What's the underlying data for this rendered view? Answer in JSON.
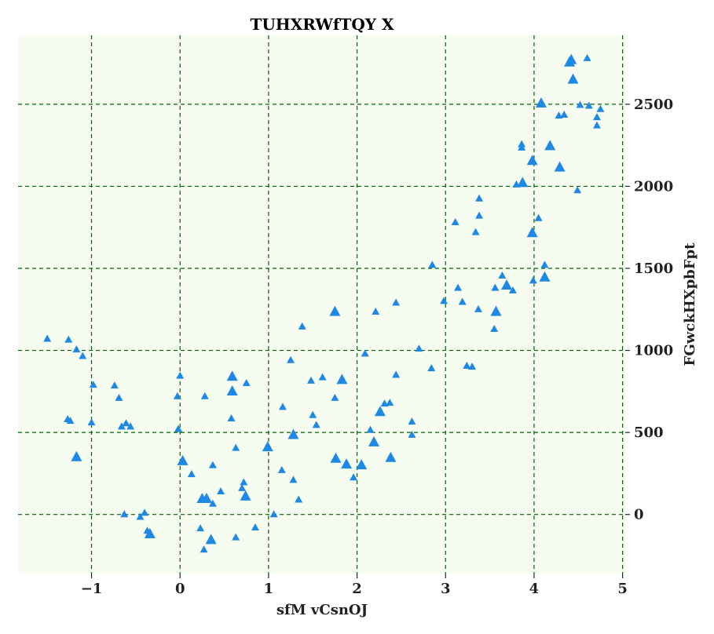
{
  "chart_data": {
    "type": "scatter",
    "title": "TUHXRWfTQY X",
    "xlabel": "sfM vCsnOJ",
    "ylabel": "FGwckHXpbFpt",
    "xlim": [
      -1.83,
      5.03
    ],
    "ylim": [
      -360,
      2920
    ],
    "xticks": [
      -1,
      0,
      1,
      2,
      3,
      4,
      5
    ],
    "xtick_labels": [
      "−1",
      "0",
      "1",
      "2",
      "3",
      "4",
      "5"
    ],
    "yticks": [
      0,
      500,
      1000,
      1500,
      2000,
      2500
    ],
    "ytick_labels": [
      "0",
      "500",
      "1000",
      "1500",
      "2000",
      "2500"
    ],
    "y_axis_side": "right",
    "grid": true,
    "legend": false,
    "colors": {
      "marker": "#1e88e5",
      "grid": "#006400",
      "plot_bg": "#f7fcf1"
    },
    "marker": "triangle-up",
    "points": [
      {
        "x": -1.5,
        "y": 1070,
        "s": 1
      },
      {
        "x": -1.26,
        "y": 1065,
        "s": 1
      },
      {
        "x": -1.17,
        "y": 1005,
        "s": 1
      },
      {
        "x": -1.1,
        "y": 965,
        "s": 1
      },
      {
        "x": -1.27,
        "y": 580,
        "s": 1
      },
      {
        "x": -1.24,
        "y": 570,
        "s": 1
      },
      {
        "x": -1.17,
        "y": 350,
        "s": 2
      },
      {
        "x": -0.98,
        "y": 790,
        "s": 1
      },
      {
        "x": -1.0,
        "y": 560,
        "s": 1
      },
      {
        "x": -0.74,
        "y": 785,
        "s": 1
      },
      {
        "x": -0.69,
        "y": 710,
        "s": 1
      },
      {
        "x": -0.66,
        "y": 535,
        "s": 1
      },
      {
        "x": -0.61,
        "y": 555,
        "s": 1
      },
      {
        "x": -0.56,
        "y": 535,
        "s": 1
      },
      {
        "x": -0.63,
        "y": 0,
        "s": 1
      },
      {
        "x": -0.45,
        "y": -15,
        "s": 1
      },
      {
        "x": -0.4,
        "y": 10,
        "s": 1
      },
      {
        "x": -0.37,
        "y": -100,
        "s": 1
      },
      {
        "x": -0.34,
        "y": -120,
        "s": 2
      },
      {
        "x": -0.03,
        "y": 720,
        "s": 1
      },
      {
        "x": 0.0,
        "y": 845,
        "s": 1
      },
      {
        "x": -0.02,
        "y": 520,
        "s": 1
      },
      {
        "x": 0.03,
        "y": 325,
        "s": 2
      },
      {
        "x": 0.13,
        "y": 245,
        "s": 1
      },
      {
        "x": 0.28,
        "y": 720,
        "s": 1
      },
      {
        "x": 0.25,
        "y": 95,
        "s": 2
      },
      {
        "x": 0.3,
        "y": 95,
        "s": 2
      },
      {
        "x": 0.23,
        "y": -85,
        "s": 1
      },
      {
        "x": 0.27,
        "y": -215,
        "s": 1
      },
      {
        "x": 0.35,
        "y": -155,
        "s": 2
      },
      {
        "x": 0.37,
        "y": 300,
        "s": 1
      },
      {
        "x": 0.37,
        "y": 65,
        "s": 1
      },
      {
        "x": 0.46,
        "y": 140,
        "s": 1
      },
      {
        "x": 0.58,
        "y": 585,
        "s": 1
      },
      {
        "x": 0.59,
        "y": 840,
        "s": 2
      },
      {
        "x": 0.59,
        "y": 750,
        "s": 2
      },
      {
        "x": 0.63,
        "y": 405,
        "s": 1
      },
      {
        "x": 0.63,
        "y": -140,
        "s": 1
      },
      {
        "x": 0.7,
        "y": 160,
        "s": 1
      },
      {
        "x": 0.72,
        "y": 195,
        "s": 1
      },
      {
        "x": 0.74,
        "y": 110,
        "s": 2
      },
      {
        "x": 0.75,
        "y": 800,
        "s": 1
      },
      {
        "x": 0.85,
        "y": -80,
        "s": 1
      },
      {
        "x": 0.99,
        "y": 410,
        "s": 2
      },
      {
        "x": 1.06,
        "y": 0,
        "s": 1
      },
      {
        "x": 1.16,
        "y": 655,
        "s": 1
      },
      {
        "x": 1.15,
        "y": 270,
        "s": 1
      },
      {
        "x": 1.25,
        "y": 940,
        "s": 1
      },
      {
        "x": 1.28,
        "y": 485,
        "s": 2
      },
      {
        "x": 1.28,
        "y": 210,
        "s": 1
      },
      {
        "x": 1.34,
        "y": 90,
        "s": 1
      },
      {
        "x": 1.38,
        "y": 1145,
        "s": 1
      },
      {
        "x": 1.48,
        "y": 815,
        "s": 1
      },
      {
        "x": 1.5,
        "y": 605,
        "s": 1
      },
      {
        "x": 1.54,
        "y": 545,
        "s": 1
      },
      {
        "x": 1.61,
        "y": 835,
        "s": 1
      },
      {
        "x": 1.75,
        "y": 1235,
        "s": 2
      },
      {
        "x": 1.75,
        "y": 710,
        "s": 1
      },
      {
        "x": 1.76,
        "y": 340,
        "s": 2
      },
      {
        "x": 1.83,
        "y": 820,
        "s": 2
      },
      {
        "x": 1.88,
        "y": 305,
        "s": 2
      },
      {
        "x": 1.96,
        "y": 225,
        "s": 1
      },
      {
        "x": 2.05,
        "y": 300,
        "s": 2
      },
      {
        "x": 2.09,
        "y": 980,
        "s": 1
      },
      {
        "x": 2.15,
        "y": 515,
        "s": 1
      },
      {
        "x": 2.19,
        "y": 440,
        "s": 2
      },
      {
        "x": 2.21,
        "y": 1235,
        "s": 1
      },
      {
        "x": 2.26,
        "y": 625,
        "s": 2
      },
      {
        "x": 2.31,
        "y": 675,
        "s": 1
      },
      {
        "x": 2.37,
        "y": 680,
        "s": 1
      },
      {
        "x": 2.38,
        "y": 345,
        "s": 2
      },
      {
        "x": 2.44,
        "y": 1290,
        "s": 1
      },
      {
        "x": 2.44,
        "y": 850,
        "s": 1
      },
      {
        "x": 2.62,
        "y": 565,
        "s": 1
      },
      {
        "x": 2.62,
        "y": 485,
        "s": 1
      },
      {
        "x": 2.7,
        "y": 1010,
        "s": 1
      },
      {
        "x": 2.84,
        "y": 890,
        "s": 1
      },
      {
        "x": 2.85,
        "y": 1520,
        "s": 1
      },
      {
        "x": 2.98,
        "y": 1300,
        "s": 1
      },
      {
        "x": 3.11,
        "y": 1780,
        "s": 1
      },
      {
        "x": 3.14,
        "y": 1380,
        "s": 1
      },
      {
        "x": 3.19,
        "y": 1295,
        "s": 1
      },
      {
        "x": 3.24,
        "y": 905,
        "s": 1
      },
      {
        "x": 3.3,
        "y": 900,
        "s": 1
      },
      {
        "x": 3.34,
        "y": 1720,
        "s": 1
      },
      {
        "x": 3.38,
        "y": 1925,
        "s": 1
      },
      {
        "x": 3.38,
        "y": 1820,
        "s": 1
      },
      {
        "x": 3.37,
        "y": 1250,
        "s": 1
      },
      {
        "x": 3.55,
        "y": 1130,
        "s": 1
      },
      {
        "x": 3.56,
        "y": 1380,
        "s": 1
      },
      {
        "x": 3.57,
        "y": 1235,
        "s": 2
      },
      {
        "x": 3.64,
        "y": 1455,
        "s": 1
      },
      {
        "x": 3.69,
        "y": 1395,
        "s": 2
      },
      {
        "x": 3.76,
        "y": 1365,
        "s": 1
      },
      {
        "x": 3.8,
        "y": 2010,
        "s": 1
      },
      {
        "x": 3.86,
        "y": 2255,
        "s": 1
      },
      {
        "x": 3.86,
        "y": 2235,
        "s": 1
      },
      {
        "x": 3.87,
        "y": 2020,
        "s": 2
      },
      {
        "x": 3.98,
        "y": 2155,
        "s": 2
      },
      {
        "x": 3.98,
        "y": 1715,
        "s": 2
      },
      {
        "x": 3.99,
        "y": 1425,
        "s": 1
      },
      {
        "x": 4.05,
        "y": 1805,
        "s": 1
      },
      {
        "x": 4.08,
        "y": 2505,
        "s": 2
      },
      {
        "x": 4.12,
        "y": 1520,
        "s": 1
      },
      {
        "x": 4.12,
        "y": 1445,
        "s": 2
      },
      {
        "x": 4.18,
        "y": 2245,
        "s": 2
      },
      {
        "x": 4.28,
        "y": 2430,
        "s": 1
      },
      {
        "x": 4.29,
        "y": 2115,
        "s": 2
      },
      {
        "x": 4.34,
        "y": 2435,
        "s": 1
      },
      {
        "x": 4.4,
        "y": 2755,
        "s": 2
      },
      {
        "x": 4.42,
        "y": 2770,
        "s": 2
      },
      {
        "x": 4.44,
        "y": 2650,
        "s": 2
      },
      {
        "x": 4.49,
        "y": 1975,
        "s": 1
      },
      {
        "x": 4.52,
        "y": 2495,
        "s": 1
      },
      {
        "x": 4.6,
        "y": 2780,
        "s": 1
      },
      {
        "x": 4.62,
        "y": 2490,
        "s": 1
      },
      {
        "x": 4.71,
        "y": 2420,
        "s": 1
      },
      {
        "x": 4.71,
        "y": 2370,
        "s": 1
      },
      {
        "x": 4.75,
        "y": 2470,
        "s": 1
      }
    ]
  }
}
